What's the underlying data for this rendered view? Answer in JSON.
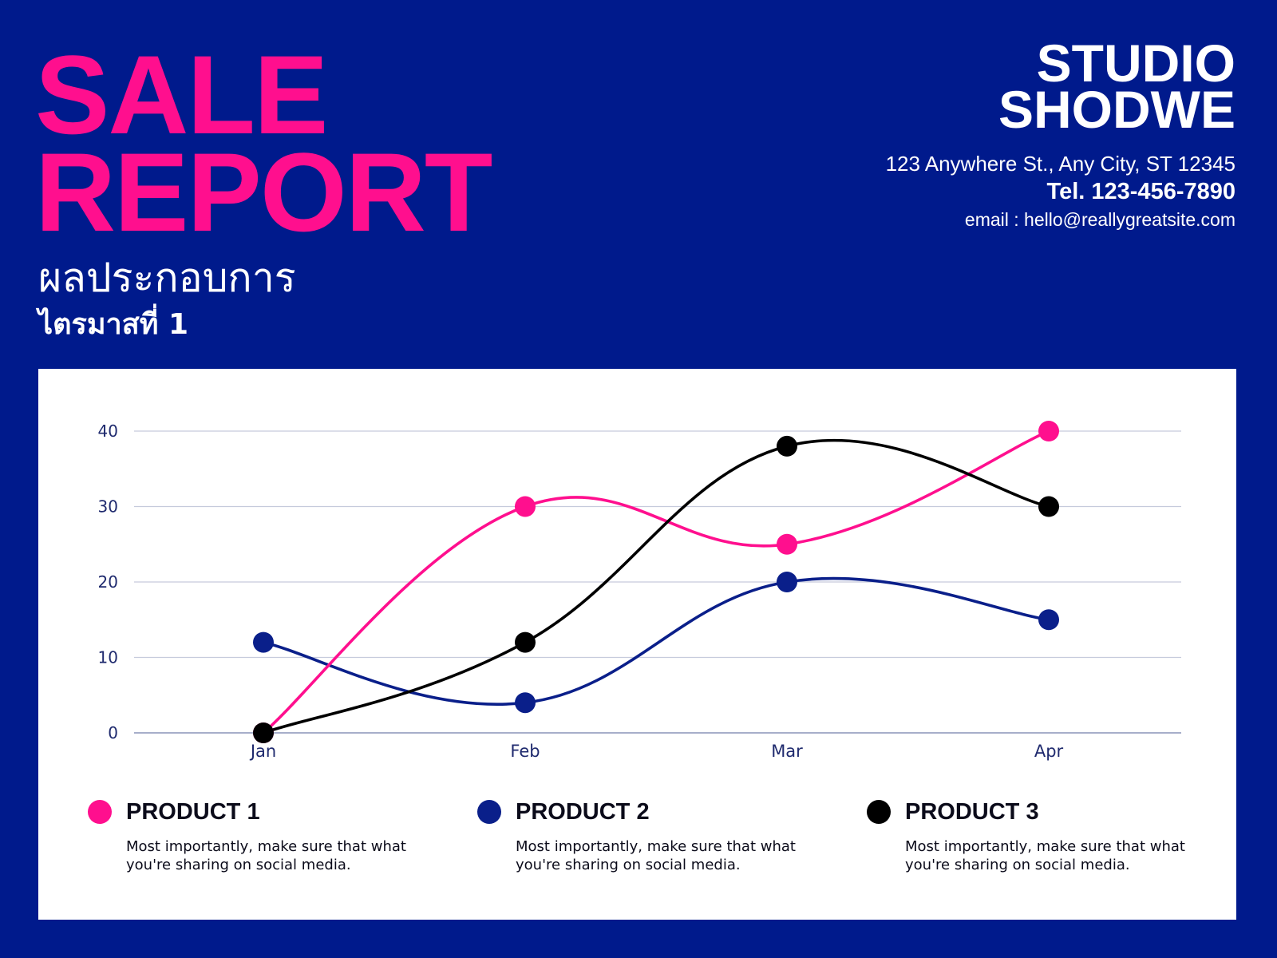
{
  "title": {
    "line1": "SALE",
    "line2": "REPORT"
  },
  "subtitle_thai": "ผลประกอบการ",
  "quarter_thai": "ไตรมาสที่ 1",
  "brand": {
    "line1": "STUDIO",
    "line2": "SHODWE"
  },
  "contact": {
    "address": "123 Anywhere St., Any City, ST 12345",
    "tel": "Tel. 123-456-7890",
    "email": "email : hello@reallygreatsite.com"
  },
  "colors": {
    "background": "#001a8c",
    "accent": "#ff0f8e",
    "product1": "#ff0f8e",
    "product2": "#0a1f8a",
    "product3": "#000000"
  },
  "chart_data": {
    "type": "line",
    "categories": [
      "Jan",
      "Feb",
      "Mar",
      "Apr"
    ],
    "ylim": [
      0,
      40
    ],
    "yticks": [
      0,
      10,
      20,
      30,
      40
    ],
    "grid": true,
    "legend_placement": "bottom",
    "series": [
      {
        "name": "PRODUCT 1",
        "color": "#ff0f8e",
        "values": [
          0,
          30,
          25,
          40
        ]
      },
      {
        "name": "PRODUCT 2",
        "color": "#0a1f8a",
        "values": [
          12,
          4,
          20,
          15
        ]
      },
      {
        "name": "PRODUCT 3",
        "color": "#000000",
        "values": [
          0,
          12,
          38,
          30
        ]
      }
    ]
  },
  "legend": [
    {
      "name": "PRODUCT 1",
      "description": "Most importantly, make sure that what you're sharing on social media."
    },
    {
      "name": "PRODUCT 2",
      "description": "Most importantly, make sure that what you're sharing on social media."
    },
    {
      "name": "PRODUCT 3",
      "description": "Most importantly, make sure that what you're sharing on social media."
    }
  ]
}
